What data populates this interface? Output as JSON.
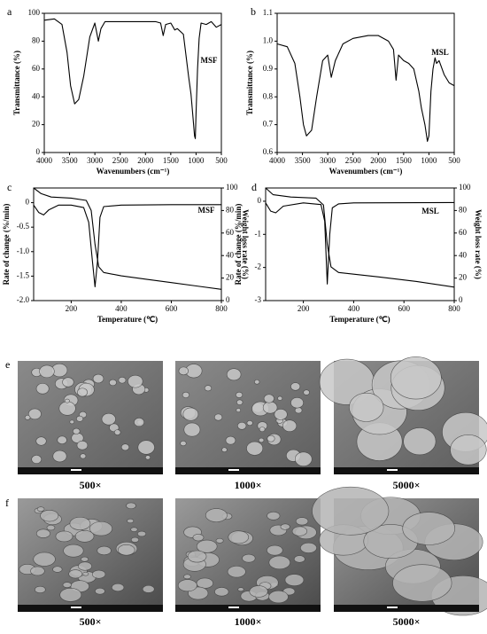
{
  "chart_data": [
    {
      "type": "line",
      "panel": "a",
      "annotation": "MSF",
      "xlabel": "Wavenumbers (cm⁻¹)",
      "ylabel": "Transmittance (%)",
      "xlim": [
        4000,
        500
      ],
      "xticks": [
        4000,
        3500,
        3000,
        2500,
        2000,
        1500,
        1000,
        500
      ],
      "ylim": [
        0,
        100
      ],
      "yticks": [
        0,
        20,
        40,
        60,
        80,
        100
      ],
      "series": [
        {
          "color": "#000000",
          "x": [
            4000,
            3800,
            3650,
            3550,
            3480,
            3400,
            3320,
            3220,
            3100,
            3000,
            2930,
            2880,
            2800,
            2500,
            2300,
            2000,
            1800,
            1700,
            1650,
            1600,
            1500,
            1420,
            1370,
            1250,
            1200,
            1150,
            1100,
            1060,
            1030,
            1015,
            1000,
            970,
            940,
            900,
            800,
            700,
            600,
            500
          ],
          "values": [
            95,
            96,
            92,
            72,
            48,
            35,
            38,
            55,
            83,
            93,
            80,
            89,
            94,
            94,
            94,
            94,
            94,
            93,
            84,
            92,
            93,
            88,
            89,
            85,
            70,
            55,
            42,
            25,
            12,
            10,
            28,
            60,
            82,
            93,
            92,
            94,
            90,
            92
          ]
        }
      ]
    },
    {
      "type": "line",
      "panel": "b",
      "annotation": "MSL",
      "xlabel": "Wavenumbers (cm⁻¹)",
      "ylabel": "Transmittance (%)",
      "xlim": [
        4000,
        500
      ],
      "xticks": [
        4000,
        3500,
        3000,
        2500,
        2000,
        1500,
        1000,
        500
      ],
      "ylim": [
        0.6,
        1.1
      ],
      "yticks": [
        0.6,
        0.7,
        0.8,
        0.9,
        {
          "value": 1,
          "label": "1.0"
        },
        1.1
      ],
      "series": [
        {
          "color": "#000000",
          "x": [
            4000,
            3800,
            3650,
            3550,
            3480,
            3420,
            3320,
            3220,
            3100,
            3000,
            2930,
            2850,
            2700,
            2500,
            2200,
            2000,
            1800,
            1700,
            1650,
            1600,
            1500,
            1400,
            1300,
            1200,
            1150,
            1080,
            1030,
            1000,
            960,
            920,
            880,
            850,
            800,
            700,
            600,
            500
          ],
          "values": [
            0.99,
            0.98,
            0.92,
            0.8,
            0.7,
            0.66,
            0.68,
            0.8,
            0.93,
            0.95,
            0.87,
            0.93,
            0.99,
            1.01,
            1.02,
            1.02,
            1.0,
            0.97,
            0.86,
            0.95,
            0.93,
            0.92,
            0.9,
            0.82,
            0.76,
            0.7,
            0.64,
            0.66,
            0.82,
            0.9,
            0.94,
            0.92,
            0.93,
            0.88,
            0.85,
            0.84
          ]
        }
      ]
    },
    {
      "type": "line",
      "panel": "c",
      "annotation": "MSF",
      "xlabel": "Temperature (℃)",
      "ylabel": "Rate of change (%/min)",
      "y2label": "Weight loss rate (%)",
      "xlim": [
        50,
        800
      ],
      "xticks": [
        200,
        400,
        600,
        800
      ],
      "ylim": [
        -2,
        0.3
      ],
      "yticks": [
        {
          "value": -2,
          "label": "-2.0"
        },
        -1.5,
        {
          "value": -1,
          "label": "-1.0"
        },
        -0.5,
        0
      ],
      "y2lim": [
        0,
        100
      ],
      "y2ticks": [
        0,
        20,
        40,
        60,
        80,
        100
      ],
      "series": [
        {
          "color": "#000000",
          "x": [
            50,
            70,
            90,
            110,
            150,
            200,
            250,
            270,
            285,
            295,
            305,
            315,
            330,
            400,
            600,
            800
          ],
          "values": [
            -0.05,
            -0.2,
            -0.25,
            -0.15,
            -0.05,
            -0.05,
            -0.1,
            -0.4,
            -1.2,
            -1.72,
            -1.2,
            -0.3,
            -0.08,
            -0.05,
            -0.04,
            -0.04
          ]
        },
        {
          "color": "#000000",
          "axis": "y2",
          "x": [
            50,
            80,
            120,
            200,
            260,
            280,
            295,
            310,
            330,
            400,
            500,
            600,
            700,
            800
          ],
          "values": [
            100,
            95,
            92,
            91,
            89,
            80,
            50,
            30,
            25,
            22,
            19,
            16,
            13,
            10
          ]
        }
      ]
    },
    {
      "type": "line",
      "panel": "d",
      "annotation": "MSL",
      "xlabel": "Temperature (℃)",
      "ylabel": "Rate of change (%/min)",
      "y2label": "Weight loss rate (%)",
      "xlim": [
        50,
        800
      ],
      "xticks": [
        200,
        400,
        600,
        800
      ],
      "ylim": [
        -3,
        0.4
      ],
      "yticks": [
        -3,
        -2,
        -1,
        0
      ],
      "y2lim": [
        0,
        100
      ],
      "y2ticks": [
        0,
        20,
        40,
        60,
        80,
        100
      ],
      "series": [
        {
          "color": "#000000",
          "x": [
            50,
            70,
            90,
            120,
            200,
            270,
            285,
            295,
            305,
            315,
            340,
            400,
            800
          ],
          "values": [
            -0.05,
            -0.3,
            -0.35,
            -0.15,
            -0.05,
            -0.1,
            -0.6,
            -2.5,
            -1.0,
            -0.2,
            -0.08,
            -0.05,
            -0.04
          ]
        },
        {
          "color": "#000000",
          "axis": "y2",
          "x": [
            50,
            80,
            150,
            250,
            280,
            295,
            310,
            340,
            500,
            650,
            800
          ],
          "values": [
            100,
            94,
            92,
            91,
            85,
            50,
            30,
            25,
            21,
            17,
            12
          ]
        }
      ]
    }
  ],
  "micrographs": [
    {
      "panel": "e",
      "magnifications": [
        "500×",
        "1000×",
        "5000×"
      ]
    },
    {
      "panel": "f",
      "magnifications": [
        "500×",
        "1000×",
        "5000×"
      ]
    }
  ]
}
